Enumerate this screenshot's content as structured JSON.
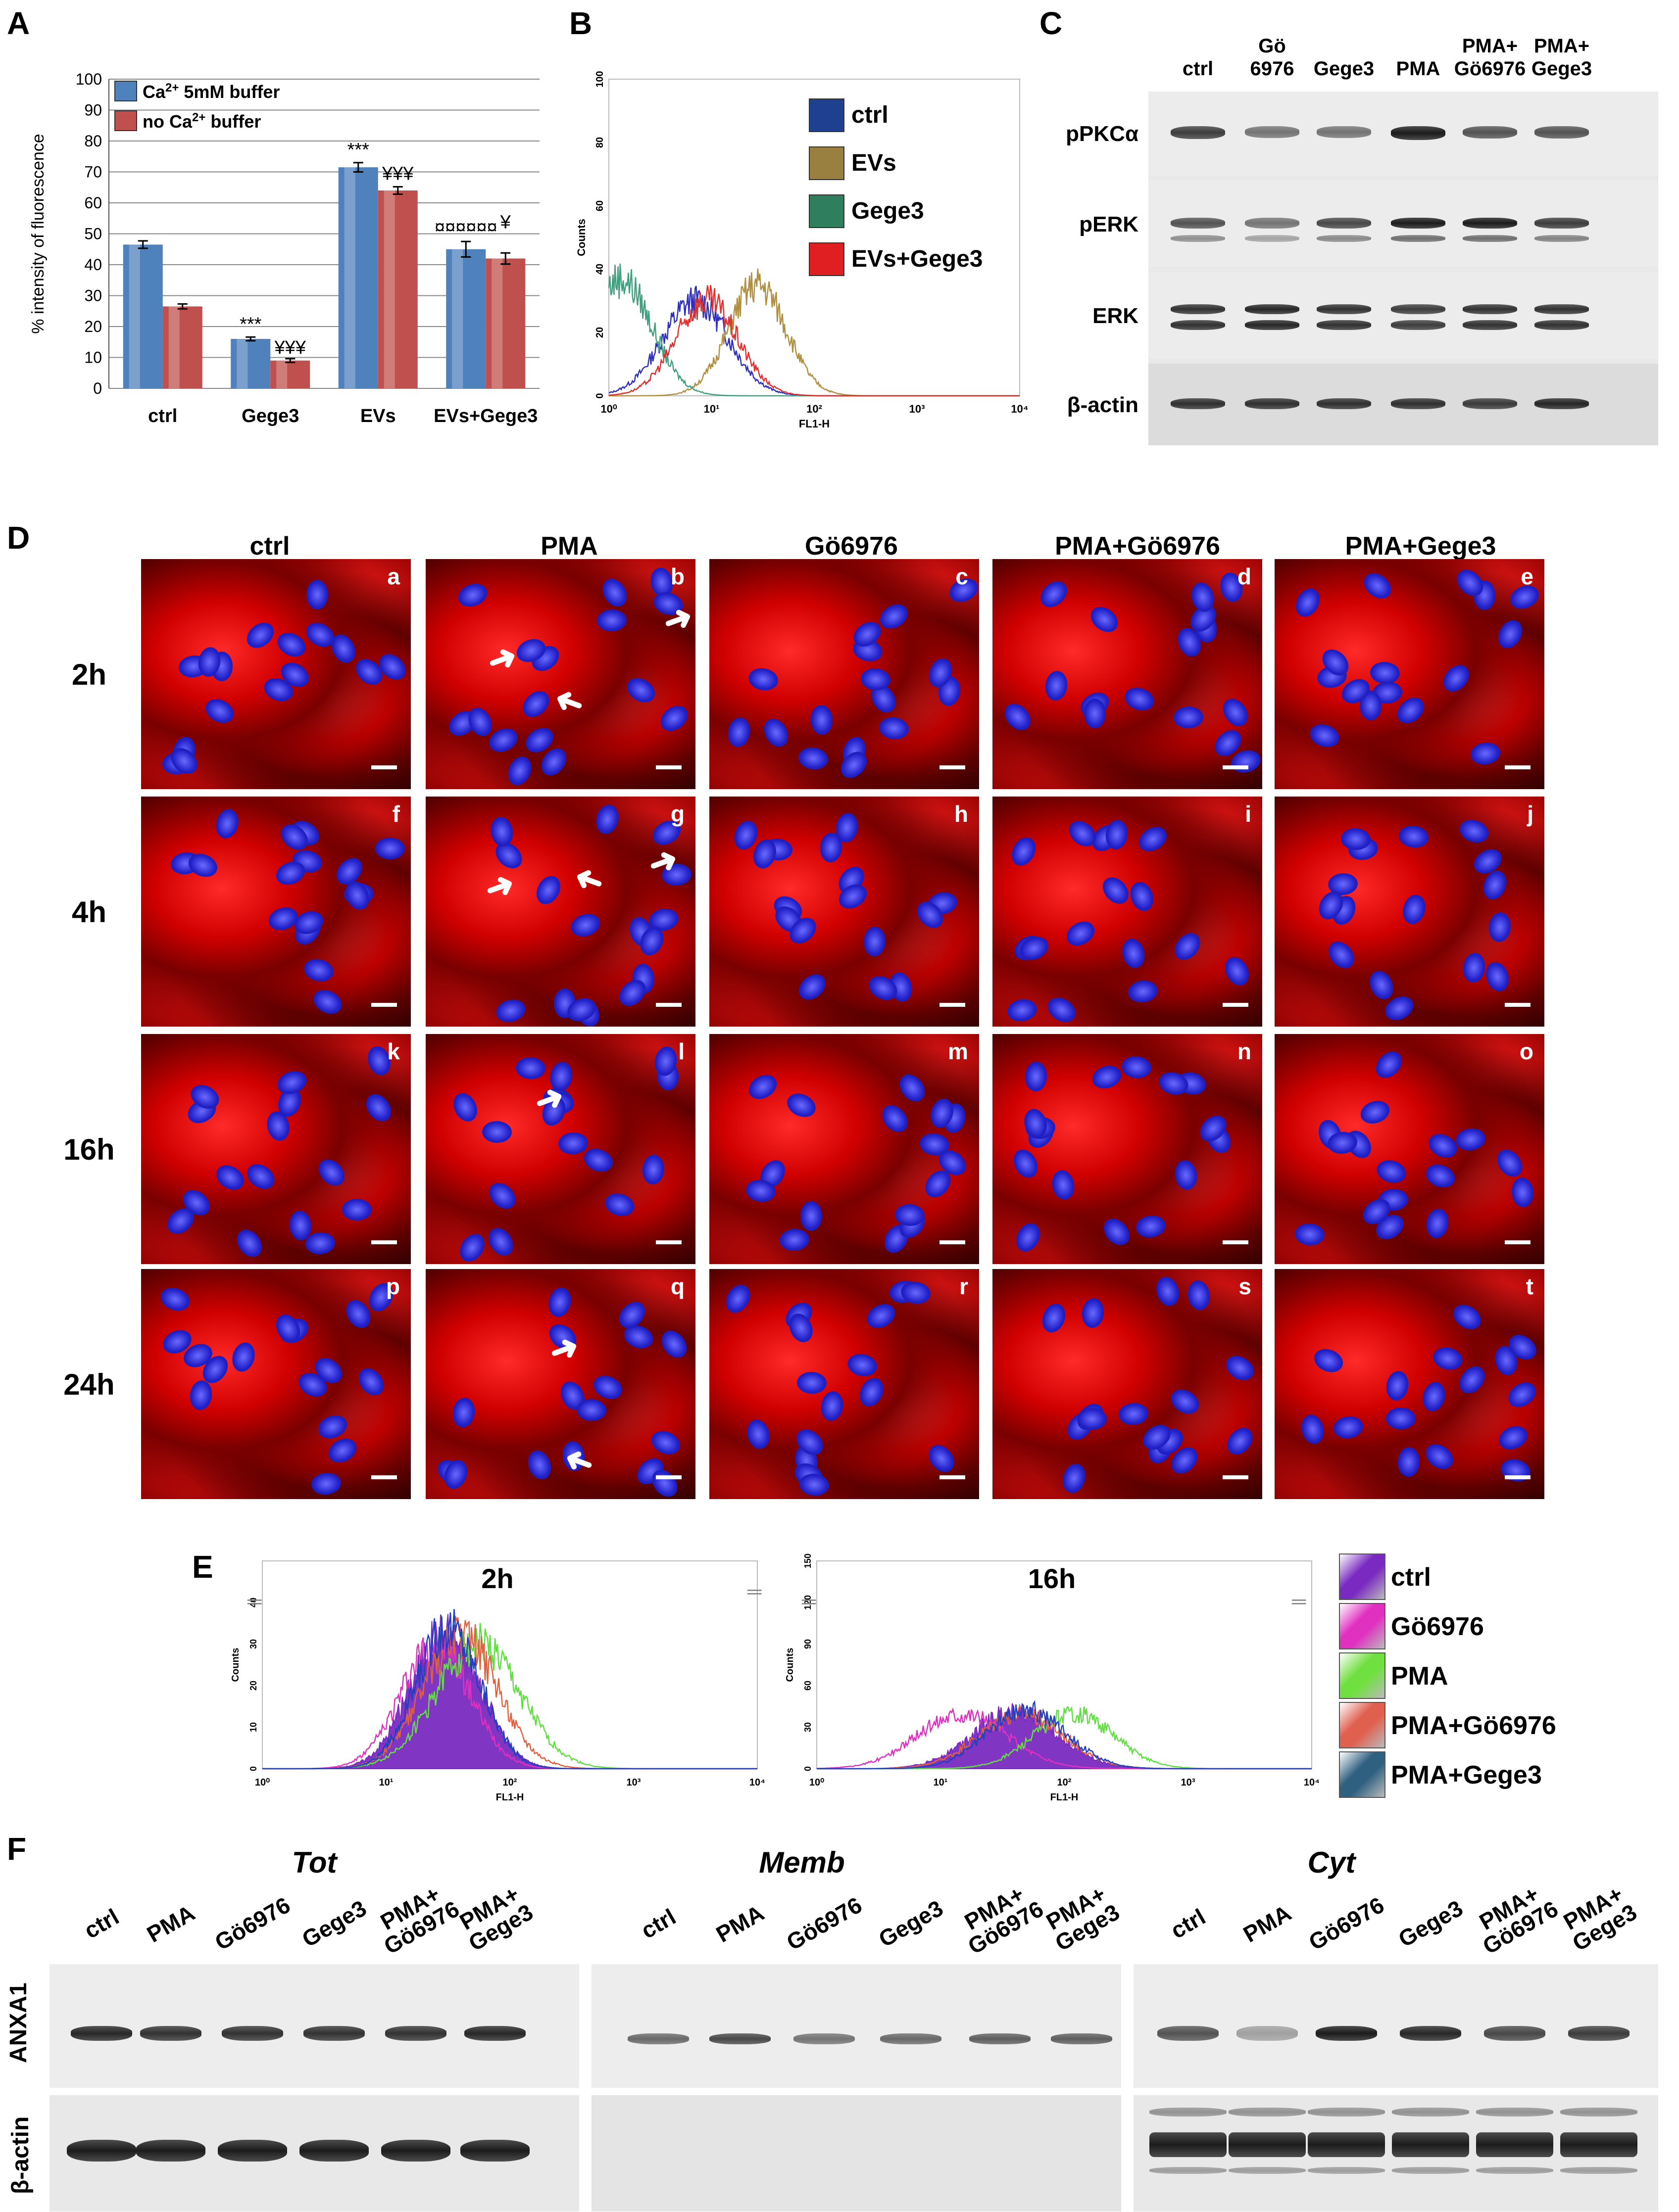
{
  "panels": {
    "A": "A",
    "B": "B",
    "C": "C",
    "D": "D",
    "E": "E",
    "F": "F"
  },
  "panelA": {
    "ylabel": "% intensity of fluorescence",
    "legend": [
      "Ca2+ 5mM buffer",
      "no Ca2+ buffer"
    ],
    "legend_parts": [
      {
        "pre": "Ca",
        "sup": "2+",
        "post": " 5mM buffer"
      },
      {
        "pre": "no Ca",
        "sup": "2+",
        "post": " buffer"
      }
    ],
    "yticks": [
      "0",
      "10",
      "20",
      "30",
      "40",
      "50",
      "60",
      "70",
      "80",
      "90",
      "100"
    ],
    "significance": {
      "gege3_ca": "***",
      "gege3_no": "¥¥¥",
      "evs_ca": "***",
      "evs_no": "¥¥¥",
      "combo_ca": "¤¤¤¤¤¤",
      "combo_no": "¥"
    }
  },
  "chart_data": [
    {
      "type": "bar",
      "title": "",
      "xlabel": "",
      "ylabel": "% intensity of fluorescence",
      "ylim": [
        0,
        100
      ],
      "categories": [
        "ctrl",
        "Gege3",
        "EVs",
        "EVs+Gege3"
      ],
      "series": [
        {
          "name": "Ca2+ 5mM buffer",
          "values": [
            46.5,
            16,
            71.5,
            45
          ],
          "errors": [
            1.2,
            0.6,
            1.5,
            2.5
          ],
          "color": "#4f81bd"
        },
        {
          "name": "no Ca2+ buffer",
          "values": [
            26.5,
            9,
            64,
            42
          ],
          "errors": [
            0.8,
            0.6,
            1.2,
            1.8
          ],
          "color": "#c0504d"
        }
      ]
    },
    {
      "type": "line",
      "title": "",
      "xlabel": "FL1-H",
      "ylabel": "Counts",
      "xscale": "log",
      "xlim": [
        1,
        10000
      ],
      "ylim": [
        0,
        100
      ],
      "xticks": [
        "10⁰",
        "10¹",
        "10²",
        "10³",
        "10⁴"
      ],
      "yticks": [
        "0",
        "20",
        "40",
        "60",
        "80",
        "100"
      ],
      "series": [
        {
          "name": "ctrl",
          "color": "#3030c0",
          "peak_x": 7,
          "peak_y": 30,
          "width": 0.32
        },
        {
          "name": "EVs",
          "color": "#b09040",
          "peak_x": 28,
          "peak_y": 35,
          "width": 0.28
        },
        {
          "name": "Gege3",
          "color": "#40a080",
          "peak_x": 1.3,
          "peak_y": 37,
          "width": 0.3
        },
        {
          "name": "EVs+Gege3",
          "color": "#e03030",
          "peak_x": 9,
          "peak_y": 30,
          "width": 0.3
        }
      ]
    },
    {
      "type": "line",
      "title": "2h",
      "xlabel": "FL1-H",
      "ylabel": "Counts",
      "xscale": "log",
      "xlim": [
        1,
        10000
      ],
      "ylim": [
        0,
        50
      ],
      "xticks": [
        "10⁰",
        "10¹",
        "10²",
        "10³",
        "10⁴"
      ],
      "yticks": [
        "0",
        "10",
        "20",
        "30",
        "40"
      ],
      "series": [
        {
          "name": "ctrl",
          "color": "#7a2ac0",
          "peak_x": 30,
          "peak_y": 33,
          "width": 0.28,
          "filled": true
        },
        {
          "name": "Gö6976",
          "color": "#e030c0",
          "peak_x": 25,
          "peak_y": 30,
          "width": 0.28
        },
        {
          "name": "PMA",
          "color": "#60e040",
          "peak_x": 55,
          "peak_y": 30,
          "width": 0.34
        },
        {
          "name": "PMA+Gö6976",
          "color": "#e06040",
          "peak_x": 40,
          "peak_y": 32,
          "width": 0.3
        },
        {
          "name": "PMA+Gege3",
          "color": "#2040c0",
          "peak_x": 32,
          "peak_y": 34,
          "width": 0.26
        }
      ]
    },
    {
      "type": "line",
      "title": "16h",
      "xlabel": "FL1-H",
      "ylabel": "Counts",
      "xscale": "log",
      "xlim": [
        1,
        10000
      ],
      "ylim": [
        0,
        150
      ],
      "xticks": [
        "10⁰",
        "10¹",
        "10²",
        "10³",
        "10⁴"
      ],
      "yticks": [
        "0",
        "30",
        "60",
        "90",
        "120",
        "150"
      ],
      "series": [
        {
          "name": "ctrl",
          "color": "#7a2ac0",
          "peak_x": 40,
          "peak_y": 42,
          "width": 0.34,
          "filled": true
        },
        {
          "name": "Gö6976",
          "color": "#e030c0",
          "peak_x": 15,
          "peak_y": 40,
          "width": 0.36
        },
        {
          "name": "PMA",
          "color": "#60e040",
          "peak_x": 120,
          "peak_y": 40,
          "width": 0.32
        },
        {
          "name": "PMA+Gö6976",
          "color": "#e06040",
          "peak_x": 45,
          "peak_y": 40,
          "width": 0.34
        },
        {
          "name": "PMA+Gege3",
          "color": "#2040c0",
          "peak_x": 50,
          "peak_y": 42,
          "width": 0.32
        }
      ]
    }
  ],
  "panelB": {
    "legend": [
      "ctrl",
      "EVs",
      "Gege3",
      "EVs+Gege3"
    ],
    "legend_colors": [
      "#1f3f8f",
      "#9a8040",
      "#2f7f5f",
      "#e02020"
    ]
  },
  "panelC": {
    "lanes": [
      "ctrl",
      "Gö\n6976",
      "Gege3",
      "PMA",
      "PMA+\nGö6976",
      "PMA+\nGege3"
    ],
    "lane_l1": [
      "ctrl",
      "Gö",
      "Gege3",
      "PMA",
      "PMA+",
      "PMA+"
    ],
    "lane_l2": [
      "",
      "6976",
      "",
      "",
      "Gö6976",
      "Gege3"
    ],
    "rows": [
      "pPKCα",
      "pERK",
      "ERK",
      "β-actin"
    ]
  },
  "panelD": {
    "columns": [
      "ctrl",
      "PMA",
      "Gö6976",
      "PMA+Gö6976",
      "PMA+Gege3"
    ],
    "rows": [
      "2h",
      "4h",
      "16h",
      "24h"
    ],
    "sublabels": [
      "a",
      "b",
      "c",
      "d",
      "e",
      "f",
      "g",
      "h",
      "i",
      "j",
      "k",
      "l",
      "m",
      "n",
      "o",
      "p",
      "q",
      "r",
      "s",
      "t"
    ]
  },
  "panelE": {
    "titles": [
      "2h",
      "16h"
    ],
    "legend": [
      "ctrl",
      "Gö6976",
      "PMA",
      "PMA+Gö6976",
      "PMA+Gege3"
    ],
    "legend_colors": [
      "#7a2ac0",
      "#e030c0",
      "#70e040",
      "#e06050",
      "#306080"
    ]
  },
  "panelF": {
    "sections": [
      "Tot",
      "Memb",
      "Cyt"
    ],
    "lanes": [
      "ctrl",
      "PMA",
      "Gö6976",
      "Gege3",
      "PMA+\nGö6976",
      "PMA+\nGege3"
    ],
    "lane_l1": [
      "ctrl",
      "PMA",
      "Gö6976",
      "Gege3",
      "PMA+",
      "PMA+"
    ],
    "lane_l2": [
      "",
      "",
      "",
      "",
      "Gö6976",
      "Gege3"
    ],
    "rows": [
      "ANXA1",
      "β-actin"
    ]
  }
}
